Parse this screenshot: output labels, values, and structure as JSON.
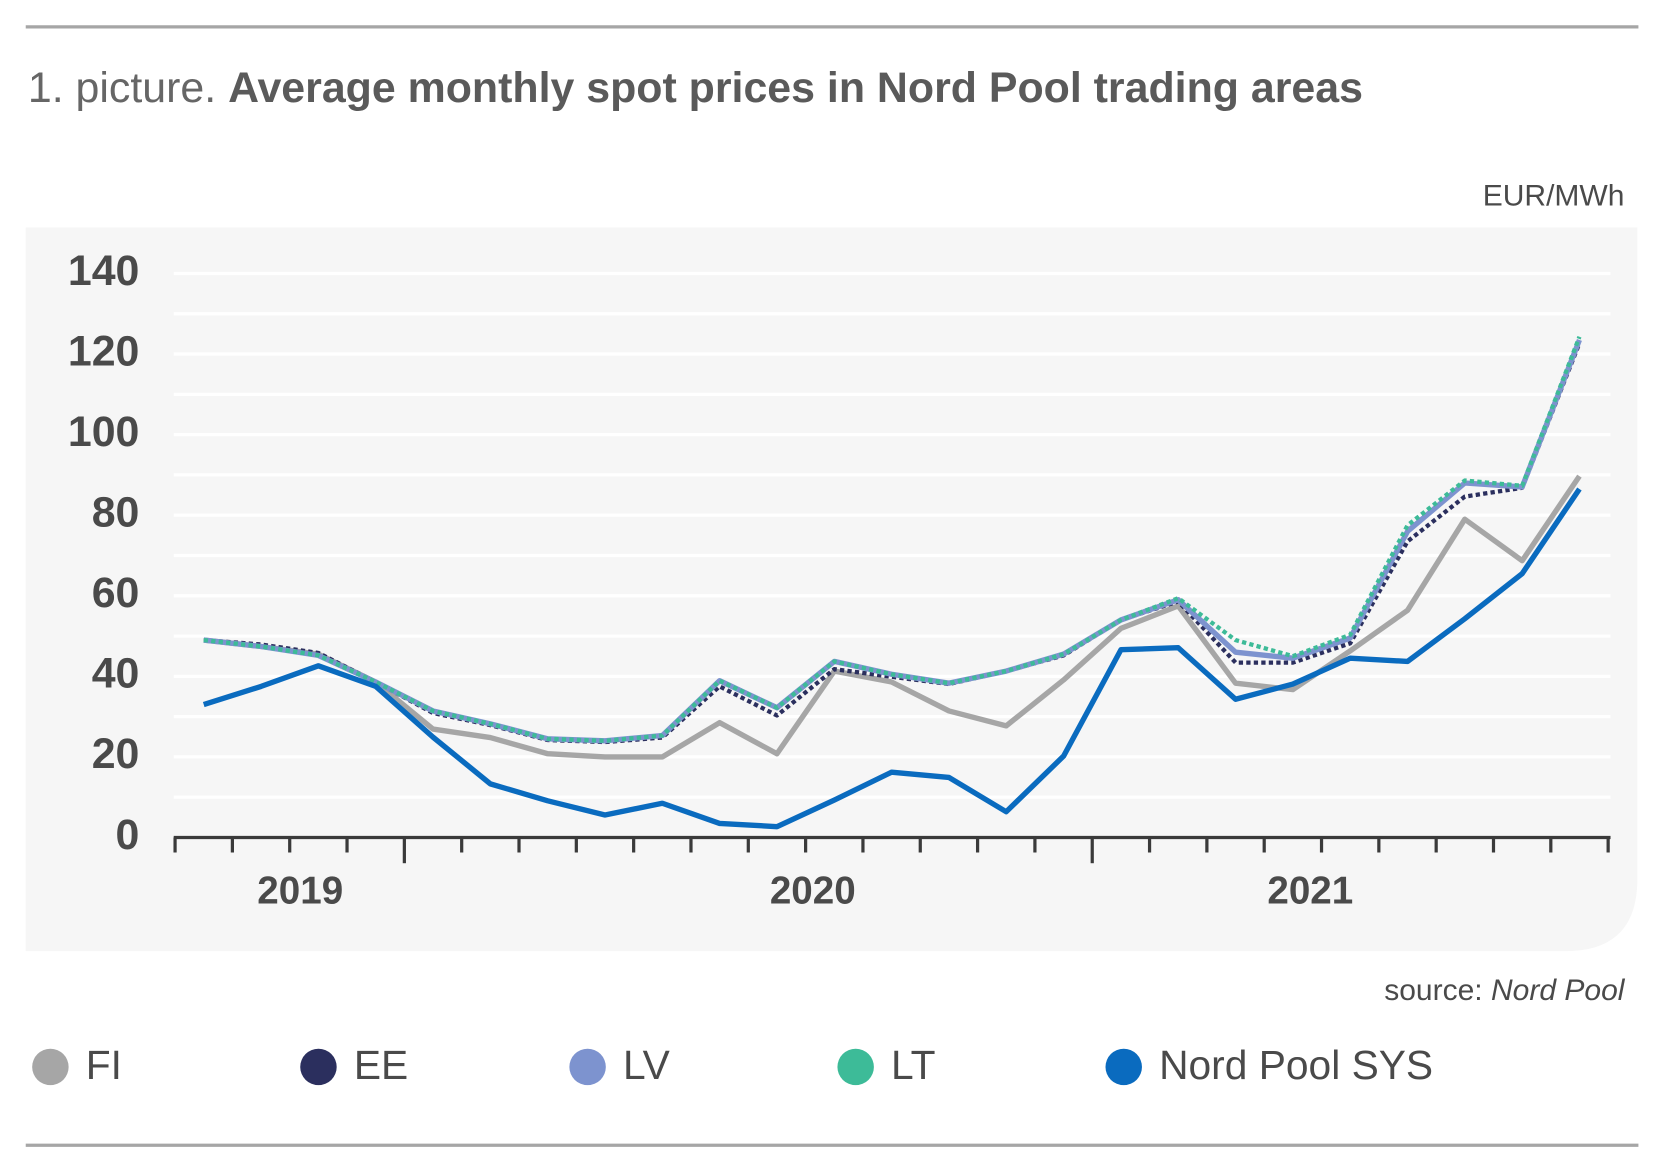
{
  "chart_data": {
    "type": "line",
    "title_prefix": "1. picture.",
    "title": "Average monthly spot prices in Nord Pool trading areas",
    "y_unit": "EUR/MWh",
    "source_label": "source:",
    "source": "Nord Pool",
    "year_labels": [
      "2019",
      "2020",
      "2021"
    ],
    "categories": [
      null,
      null,
      null,
      null,
      null,
      null,
      null,
      null,
      null,
      null,
      null,
      null,
      null,
      null,
      null,
      null,
      null,
      null,
      null,
      null,
      null,
      null,
      null,
      null,
      null
    ],
    "ylim": [
      0,
      140
    ],
    "yticks": [
      0,
      20,
      40,
      60,
      80,
      100,
      120,
      140
    ],
    "minor_yticks": [
      10,
      30,
      50,
      70,
      90,
      110,
      130
    ],
    "grid": true,
    "legend": "bottom",
    "series": [
      {
        "name": "FI",
        "color": "#a6a6a6",
        "dash": "solid",
        "values": [
          49,
          47.4,
          45.5,
          38.6,
          26.9,
          24.8,
          20.8,
          20,
          20,
          28.5,
          20.8,
          41.3,
          38.6,
          31.4,
          27.7,
          39.1,
          51.9,
          57.5,
          38.3,
          36.7,
          46.3,
          56.4,
          79,
          68.7,
          89.7
        ]
      },
      {
        "name": "EE",
        "color": "#2b2f5e",
        "dash": "dotted",
        "values": [
          49,
          47.9,
          45.8,
          38.6,
          30.9,
          27.9,
          24.2,
          23.7,
          24.8,
          37.5,
          30.3,
          41.8,
          39.9,
          38.1,
          41.3,
          45.2,
          54,
          58.6,
          43.4,
          43.4,
          48.2,
          73.5,
          84.6,
          86.8,
          122.7
        ]
      },
      {
        "name": "LV",
        "color": "#7d93cf",
        "dash": "solid",
        "values": [
          49,
          47.4,
          45.2,
          38.6,
          31.4,
          28.2,
          24.5,
          24,
          25.3,
          38.9,
          32.2,
          43.7,
          40.5,
          38.3,
          41.3,
          45.5,
          54,
          59,
          46,
          44.5,
          49.5,
          76,
          88,
          87,
          123.5
        ]
      },
      {
        "name": "LT",
        "color": "#3dbb98",
        "dash": "dotted",
        "values": [
          49,
          47.4,
          45.2,
          38.6,
          31.4,
          28.2,
          24.5,
          24,
          25.3,
          38.9,
          32.2,
          43.7,
          40.5,
          38.3,
          41.3,
          45.5,
          54,
          59.4,
          49,
          45,
          50.3,
          77.5,
          88.6,
          87.3,
          124.3
        ]
      },
      {
        "name": "Nord Pool SYS",
        "color": "#0a6bbf",
        "dash": "solid",
        "values": [
          33,
          37.5,
          42.6,
          37.5,
          24.9,
          13.3,
          9.1,
          5.6,
          8.5,
          3.5,
          2.7,
          9.3,
          16.2,
          14.9,
          6.4,
          20.2,
          46.6,
          47.1,
          34.3,
          38.1,
          44.5,
          43.7,
          54.3,
          65.5,
          86.5
        ]
      }
    ]
  }
}
